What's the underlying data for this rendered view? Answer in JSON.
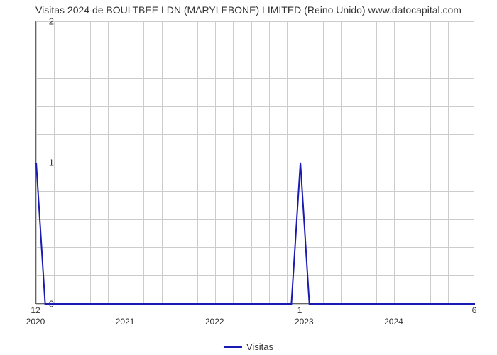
{
  "title": "Visitas 2024 de BOULTBEE LDN (MARYLEBONE) LIMITED (Reino Unido) www.datocapital.com",
  "chart": {
    "type": "line",
    "background_color": "#ffffff",
    "grid_color": "#cccccc",
    "axis_color": "#666666",
    "xlim": [
      2020,
      2024.9
    ],
    "ylim": [
      0,
      2
    ],
    "x_major_ticks": [
      2020,
      2021,
      2022,
      2023,
      2024
    ],
    "x_minor_count_between": 4,
    "y_major_ticks": [
      0,
      1,
      2
    ],
    "y_minor_per_major": 5,
    "value_labels": [
      {
        "x": 2020.0,
        "label": "12"
      },
      {
        "x": 2022.95,
        "label": "1"
      },
      {
        "x": 2024.9,
        "label": "6"
      }
    ],
    "series": {
      "name": "Visitas",
      "color": "#1919b3",
      "line_width": 2,
      "points": [
        [
          2020.0,
          1.0
        ],
        [
          2020.1,
          0.0
        ],
        [
          2022.85,
          0.0
        ],
        [
          2022.95,
          1.0
        ],
        [
          2023.05,
          0.0
        ],
        [
          2024.9,
          0.0
        ]
      ]
    }
  },
  "legend": {
    "label": "Visitas"
  }
}
